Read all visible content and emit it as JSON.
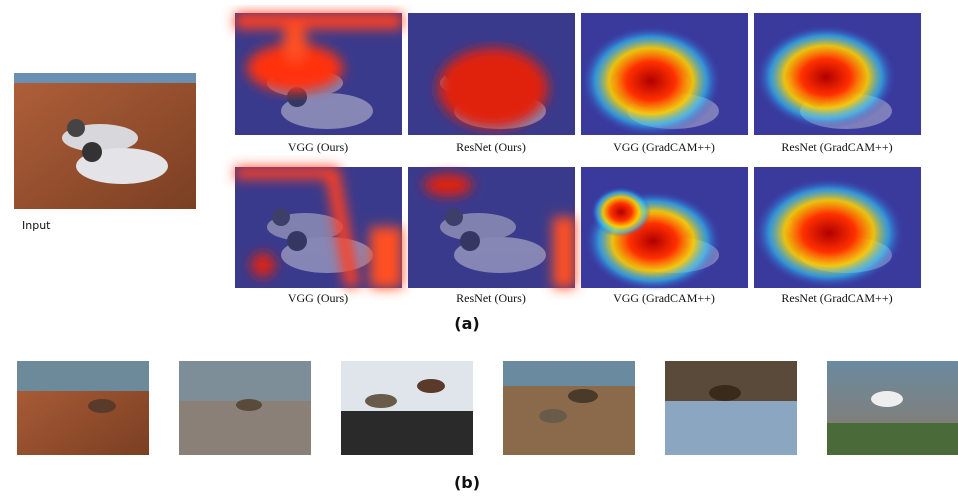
{
  "panel_a": {
    "input_label": "Input",
    "rows": [
      [
        "VGG (Ours)",
        "ResNet (Ours)",
        "VGG (GradCAM++)",
        "ResNet (GradCAM++)"
      ],
      [
        "VGG (Ours)",
        "ResNet (Ours)",
        "VGG (GradCAM++)",
        "ResNet (GradCAM++)"
      ]
    ],
    "label": "(a)"
  },
  "panel_b": {
    "label": "(b)"
  }
}
